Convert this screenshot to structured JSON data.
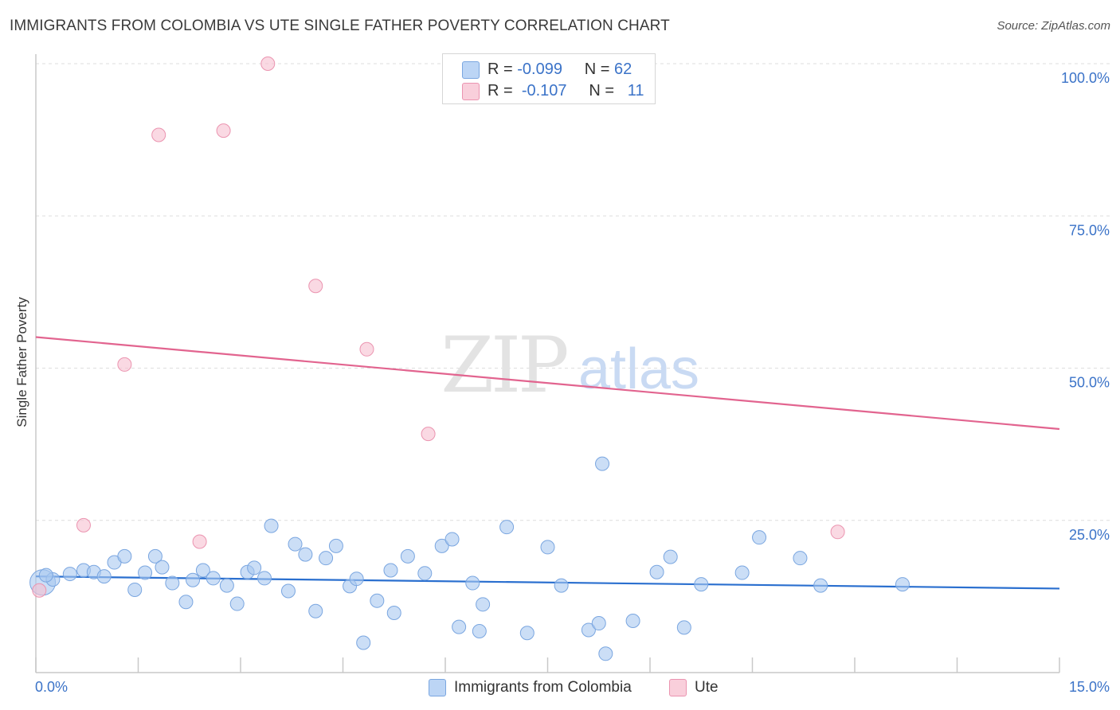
{
  "title": "IMMIGRANTS FROM COLOMBIA VS UTE SINGLE FATHER POVERTY CORRELATION CHART",
  "source": "Source: ZipAtlas.com",
  "watermark": {
    "zip": "ZIP",
    "atlas": "atlas"
  },
  "legend": {
    "series1": {
      "r_label": "R =",
      "r_value": "-0.099",
      "n_label": "N =",
      "n_value": "62"
    },
    "series2": {
      "r_label": "R =",
      "r_value": "-0.107",
      "n_label": "N =",
      "n_value": "11"
    }
  },
  "bottom_legend": {
    "series1": "Immigrants from Colombia",
    "series2": "Ute"
  },
  "colors": {
    "blue_fill": "#a8c8f0",
    "blue_stroke": "#7aa6e0",
    "blue_line": "#2a6fcf",
    "pink_fill": "#f6c0d0",
    "pink_stroke": "#eb94b0",
    "pink_line": "#e2648f",
    "axis_text": "#3b73c8",
    "grid": "#dedede"
  },
  "chart_data": {
    "type": "scatter",
    "title": "IMMIGRANTS FROM COLOMBIA VS UTE SINGLE FATHER POVERTY CORRELATION CHART",
    "xlabel": "",
    "ylabel": "Single Father Poverty",
    "xlim": [
      0,
      15
    ],
    "ylim": [
      0,
      100
    ],
    "x_tick_labels": [
      "0.0%",
      "15.0%"
    ],
    "y_ticks": [
      25,
      50,
      75,
      100
    ],
    "y_tick_labels": [
      "25.0%",
      "50.0%",
      "75.0%",
      "100.0%"
    ],
    "grid": "horizontal dashed",
    "legend_position": "top-center",
    "series": [
      {
        "name": "Immigrants from Colombia",
        "r": -0.099,
        "n": 62,
        "trend": {
          "x": [
            0,
            15
          ],
          "y": [
            15.8,
            13.8
          ]
        },
        "points": [
          [
            0.1,
            14.8
          ],
          [
            0.25,
            15.3
          ],
          [
            0.5,
            16.2
          ],
          [
            0.7,
            16.8
          ],
          [
            0.85,
            16.5
          ],
          [
            1.0,
            15.8
          ],
          [
            1.15,
            18.1
          ],
          [
            1.3,
            19.1
          ],
          [
            1.45,
            13.6
          ],
          [
            1.6,
            16.4
          ],
          [
            1.75,
            19.1
          ],
          [
            1.85,
            17.3
          ],
          [
            2.0,
            14.7
          ],
          [
            2.2,
            11.6
          ],
          [
            2.3,
            15.2
          ],
          [
            2.45,
            16.8
          ],
          [
            2.6,
            15.5
          ],
          [
            2.8,
            14.3
          ],
          [
            2.95,
            11.3
          ],
          [
            3.1,
            16.5
          ],
          [
            3.2,
            17.2
          ],
          [
            3.35,
            15.5
          ],
          [
            3.45,
            24.1
          ],
          [
            3.7,
            13.4
          ],
          [
            3.8,
            21.1
          ],
          [
            3.95,
            19.4
          ],
          [
            4.1,
            10.1
          ],
          [
            4.25,
            18.8
          ],
          [
            4.4,
            20.8
          ],
          [
            4.6,
            14.2
          ],
          [
            4.7,
            15.4
          ],
          [
            4.8,
            4.9
          ],
          [
            5.0,
            11.8
          ],
          [
            5.2,
            16.8
          ],
          [
            5.25,
            9.8
          ],
          [
            5.45,
            19.1
          ],
          [
            5.7,
            16.3
          ],
          [
            5.95,
            20.8
          ],
          [
            6.1,
            21.9
          ],
          [
            6.2,
            7.5
          ],
          [
            6.4,
            14.7
          ],
          [
            6.5,
            6.8
          ],
          [
            6.55,
            11.2
          ],
          [
            6.9,
            23.9
          ],
          [
            7.2,
            6.5
          ],
          [
            7.5,
            20.6
          ],
          [
            7.7,
            14.3
          ],
          [
            8.1,
            7.0
          ],
          [
            8.25,
            8.1
          ],
          [
            8.3,
            34.3
          ],
          [
            8.35,
            3.1
          ],
          [
            8.75,
            8.5
          ],
          [
            9.1,
            16.5
          ],
          [
            9.3,
            19.0
          ],
          [
            9.5,
            7.4
          ],
          [
            9.75,
            14.5
          ],
          [
            10.35,
            16.4
          ],
          [
            10.6,
            22.2
          ],
          [
            11.2,
            18.8
          ],
          [
            11.5,
            14.3
          ],
          [
            12.7,
            14.5
          ],
          [
            0.15,
            16.0
          ]
        ]
      },
      {
        "name": "Ute",
        "r": -0.107,
        "n": 11,
        "trend": {
          "x": [
            0,
            15
          ],
          "y": [
            55.1,
            40.0
          ]
        },
        "points": [
          [
            0.05,
            13.5
          ],
          [
            0.7,
            24.2
          ],
          [
            1.3,
            50.6
          ],
          [
            1.8,
            88.3
          ],
          [
            2.4,
            21.5
          ],
          [
            2.75,
            89.0
          ],
          [
            3.4,
            100.0
          ],
          [
            4.1,
            63.5
          ],
          [
            4.85,
            53.1
          ],
          [
            5.75,
            39.2
          ],
          [
            11.75,
            23.1
          ]
        ]
      }
    ]
  }
}
